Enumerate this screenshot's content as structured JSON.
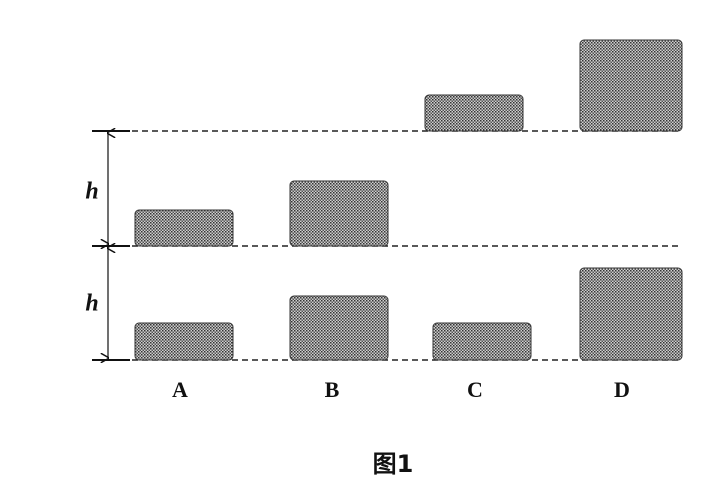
{
  "height_labels": [
    "h",
    "h"
  ],
  "columns": [
    "A",
    "B",
    "C",
    "D"
  ],
  "caption": "图1"
}
